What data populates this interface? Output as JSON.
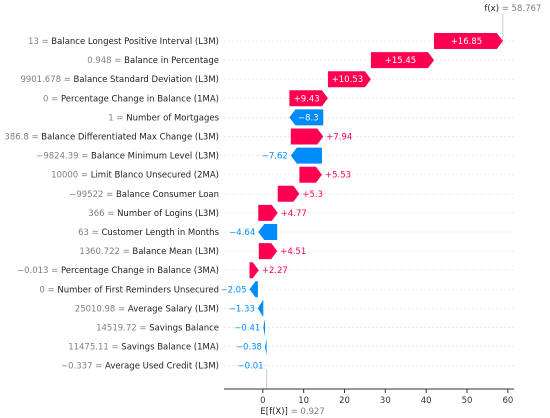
{
  "chart_data": {
    "type": "waterfall",
    "colors": {
      "positive": "#ff0051",
      "negative": "#008bfb"
    },
    "fx": {
      "label": "f(x)",
      "value": "58.767",
      "num": 58.767
    },
    "efx": {
      "label": "E[f(X)]",
      "value": "0.927",
      "num": 0.927
    },
    "x_ticks": [
      0,
      10,
      20,
      30,
      40,
      50,
      60
    ],
    "x_range": [
      -9.5,
      61.5
    ],
    "features": [
      {
        "value": "13",
        "name": "Balance Longest Positive Interval (L3M)",
        "shap": 16.85,
        "shap_label": "+16.85"
      },
      {
        "value": "0.948",
        "name": "Balance in Percentage",
        "shap": 15.45,
        "shap_label": "+15.45"
      },
      {
        "value": "9901.678",
        "name": "Balance Standard Deviation (L3M)",
        "shap": 10.53,
        "shap_label": "+10.53"
      },
      {
        "value": "0",
        "name": "Percentage Change in Balance (1MA)",
        "shap": 9.43,
        "shap_label": "+9.43"
      },
      {
        "value": "1",
        "name": "Number of Mortgages",
        "shap": -8.3,
        "shap_label": "−8.3"
      },
      {
        "value": "386.8",
        "name": "Balance Differentiated Max Change (L3M)",
        "shap": 7.94,
        "shap_label": "+7.94"
      },
      {
        "value": "−9824.39",
        "name": "Balance Minimum Level (L3M)",
        "shap": -7.62,
        "shap_label": "−7.62"
      },
      {
        "value": "10000",
        "name": "Limit Blanco Unsecured (2MA)",
        "shap": 5.53,
        "shap_label": "+5.53"
      },
      {
        "value": "−99522",
        "name": "Balance Consumer Loan",
        "shap": 5.3,
        "shap_label": "+5.3"
      },
      {
        "value": "366",
        "name": "Number of Logins (L3M)",
        "shap": 4.77,
        "shap_label": "+4.77"
      },
      {
        "value": "63",
        "name": "Customer Length in Months",
        "shap": -4.64,
        "shap_label": "−4.64"
      },
      {
        "value": "1360.722",
        "name": "Balance Mean (L3M)",
        "shap": 4.51,
        "shap_label": "+4.51"
      },
      {
        "value": "−0.013",
        "name": "Percentage Change in Balance (3MA)",
        "shap": 2.27,
        "shap_label": "+2.27"
      },
      {
        "value": "0",
        "name": "Number of First Reminders Unsecured",
        "shap": -2.05,
        "shap_label": "−2.05"
      },
      {
        "value": "25010.98",
        "name": "Average Salary (L3M)",
        "shap": -1.33,
        "shap_label": "−1.33"
      },
      {
        "value": "14519.72",
        "name": "Savings Balance",
        "shap": -0.41,
        "shap_label": "−0.41"
      },
      {
        "value": "11475.11",
        "name": "Savings Balance (1MA)",
        "shap": -0.38,
        "shap_label": "−0.38"
      },
      {
        "value": "−0.337",
        "name": "Average Used Credit (L3M)",
        "shap": -0.01,
        "shap_label": "−0.01"
      }
    ]
  }
}
